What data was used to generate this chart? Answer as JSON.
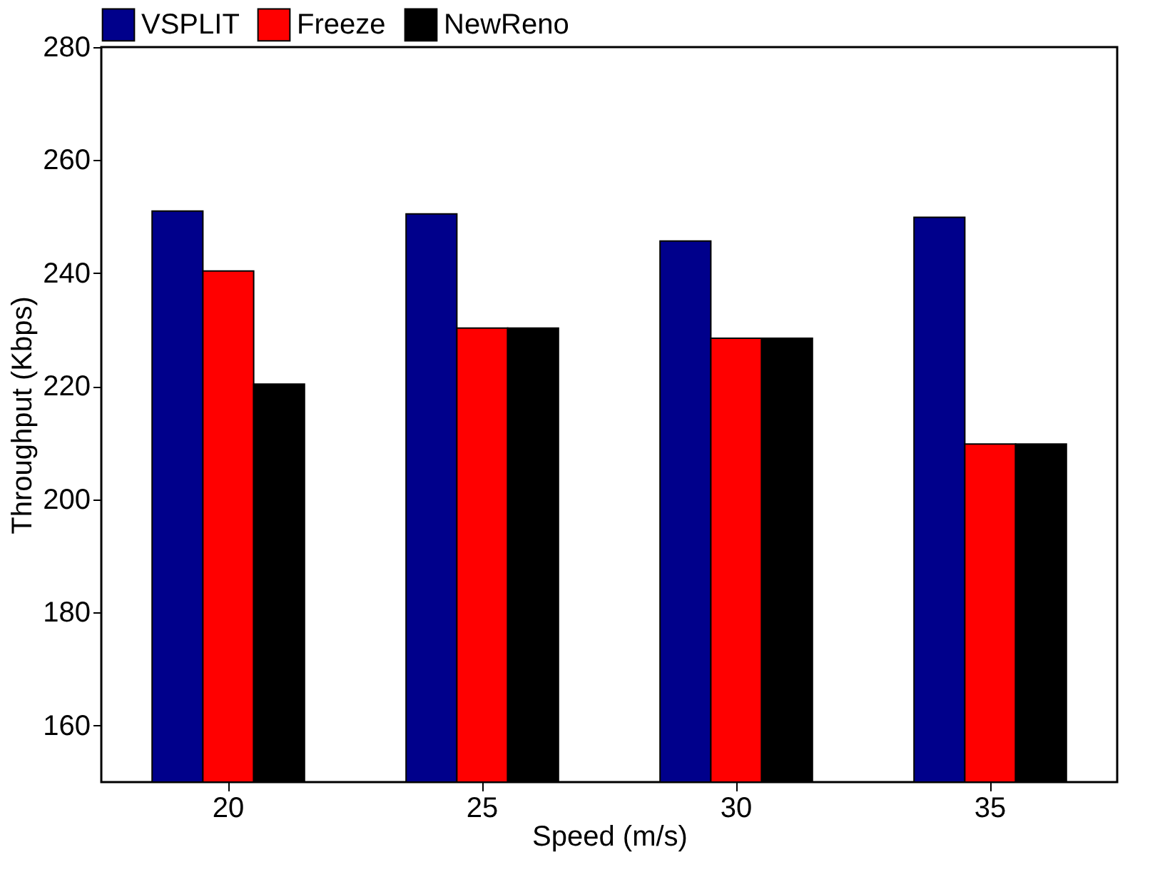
{
  "chart_data": {
    "type": "bar",
    "xlabel": "Speed (m/s)",
    "ylabel": "Throughput (Kbps)",
    "categories": [
      "20",
      "25",
      "30",
      "35"
    ],
    "series": [
      {
        "name": "VSPLIT",
        "color": "#00008b",
        "values": [
          251,
          250.5,
          245.7,
          249.9
        ]
      },
      {
        "name": "Freeze",
        "color": "#ff0000",
        "values": [
          240.4,
          230.3,
          228.5,
          209.8
        ]
      },
      {
        "name": "NewReno",
        "color": "#000000",
        "values": [
          220.4,
          230.3,
          228.5,
          209.8
        ]
      }
    ],
    "ylim": [
      150,
      280
    ],
    "yticks": [
      160,
      180,
      200,
      220,
      240,
      260,
      280
    ],
    "grid": false,
    "legend": "top"
  }
}
